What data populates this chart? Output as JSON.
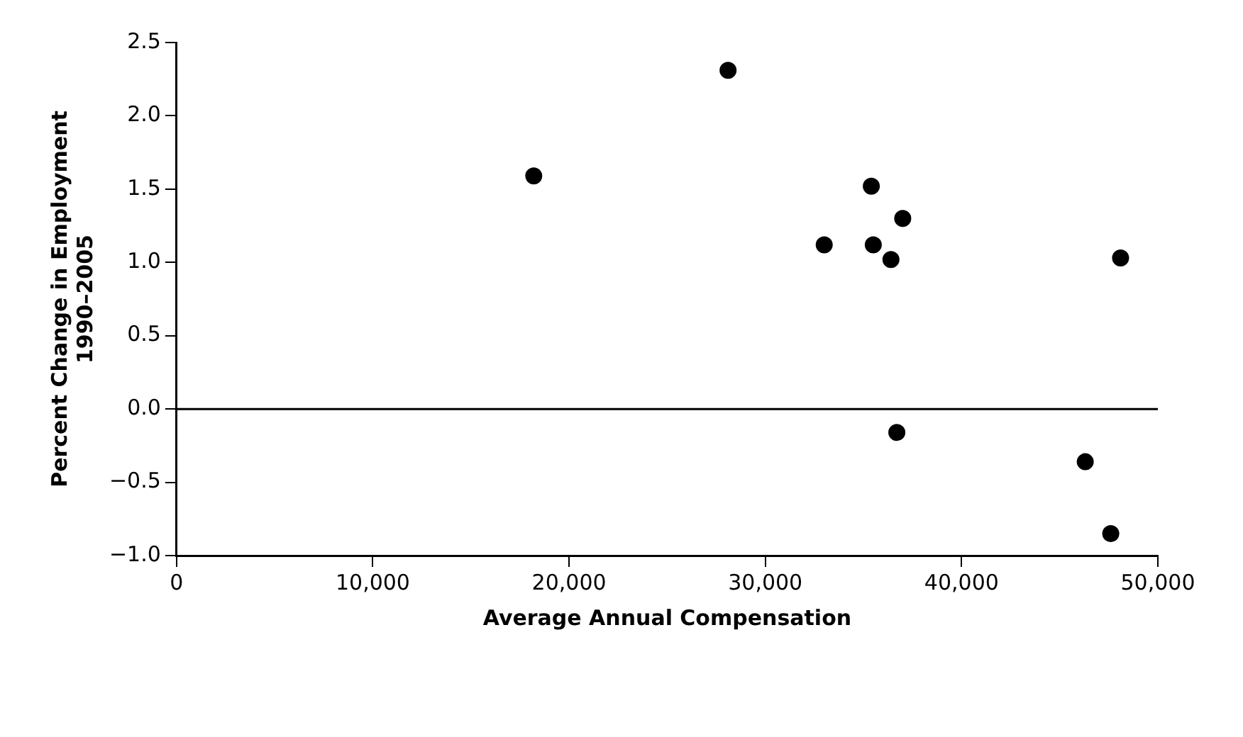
{
  "chart_data": {
    "type": "scatter",
    "xlabel": "Average Annual Compensation",
    "ylabel": "Percent Change in Employment\n1990–2005",
    "x": [
      18200,
      28100,
      35400,
      37000,
      33000,
      35500,
      36400,
      36700,
      46300,
      47600,
      48100
    ],
    "series": [
      {
        "color": "#000000",
        "values": [
          1.59,
          2.31,
          1.52,
          1.3,
          1.12,
          1.12,
          1.02,
          -0.16,
          -0.36,
          -0.85,
          1.03
        ]
      }
    ],
    "xlim": [
      0,
      50000
    ],
    "xticks": [
      {
        "value": 0,
        "label": "0"
      },
      {
        "value": 10000,
        "label": "10,000"
      },
      {
        "value": 20000,
        "label": "20,000"
      },
      {
        "value": 30000,
        "label": "30,000"
      },
      {
        "value": 40000,
        "label": "40,000"
      },
      {
        "value": 50000,
        "label": "50,000"
      }
    ],
    "ylim": [
      -1,
      2.5
    ],
    "yticks": [
      {
        "value": -1,
        "label": "−1.0"
      },
      {
        "value": -0.5,
        "label": "−0.5"
      },
      {
        "value": 0,
        "label": "0.0"
      },
      {
        "value": 0.5,
        "label": "0.5"
      },
      {
        "value": 1,
        "label": "1.0"
      },
      {
        "value": 1.5,
        "label": "1.5"
      },
      {
        "value": 2,
        "label": "2.0"
      },
      {
        "value": 2.5,
        "label": "2.5"
      }
    ],
    "ref_lines": [
      {
        "axis": "y",
        "value": 0,
        "color": "#000000"
      }
    ],
    "grid": false,
    "legend": false,
    "marker": "circle"
  }
}
